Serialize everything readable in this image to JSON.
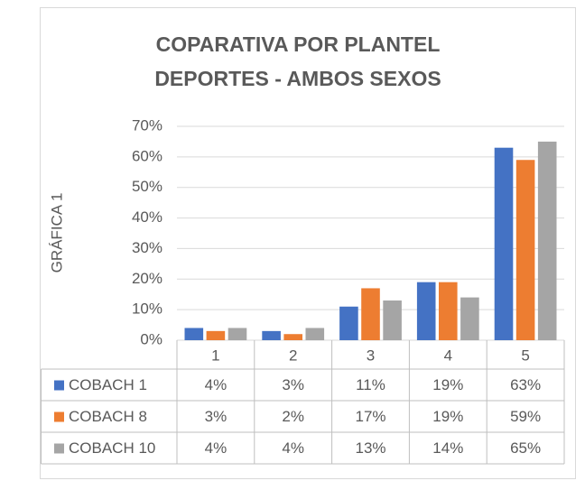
{
  "chart_data": {
    "type": "bar",
    "title": [
      "COPARATIVA POR PLANTEL",
      "DEPORTES - AMBOS SEXOS"
    ],
    "y_label": "GRÁFICA 1",
    "categories": [
      "1",
      "2",
      "3",
      "4",
      "5"
    ],
    "series": [
      {
        "name": "COBACH 1",
        "color": "#4472c4",
        "values": [
          4,
          3,
          11,
          19,
          63
        ],
        "value_labels": [
          "4%",
          "3%",
          "11%",
          "19%",
          "63%"
        ]
      },
      {
        "name": "COBACH 8",
        "color": "#ed7d31",
        "values": [
          3,
          2,
          17,
          19,
          59
        ],
        "value_labels": [
          "3%",
          "2%",
          "17%",
          "19%",
          "59%"
        ]
      },
      {
        "name": "COBACH 10",
        "color": "#a5a5a5",
        "values": [
          4,
          4,
          13,
          14,
          65
        ],
        "value_labels": [
          "4%",
          "4%",
          "13%",
          "14%",
          "65%"
        ]
      }
    ],
    "ylim": [
      0,
      70
    ],
    "yticks": [
      {
        "value": 0,
        "label": "0%"
      },
      {
        "value": 10,
        "label": "10%"
      },
      {
        "value": 20,
        "label": "20%"
      },
      {
        "value": 30,
        "label": "30%"
      },
      {
        "value": 40,
        "label": "40%"
      },
      {
        "value": 50,
        "label": "50%"
      },
      {
        "value": 60,
        "label": "60%"
      },
      {
        "value": 70,
        "label": "70%"
      }
    ],
    "grid": true
  }
}
